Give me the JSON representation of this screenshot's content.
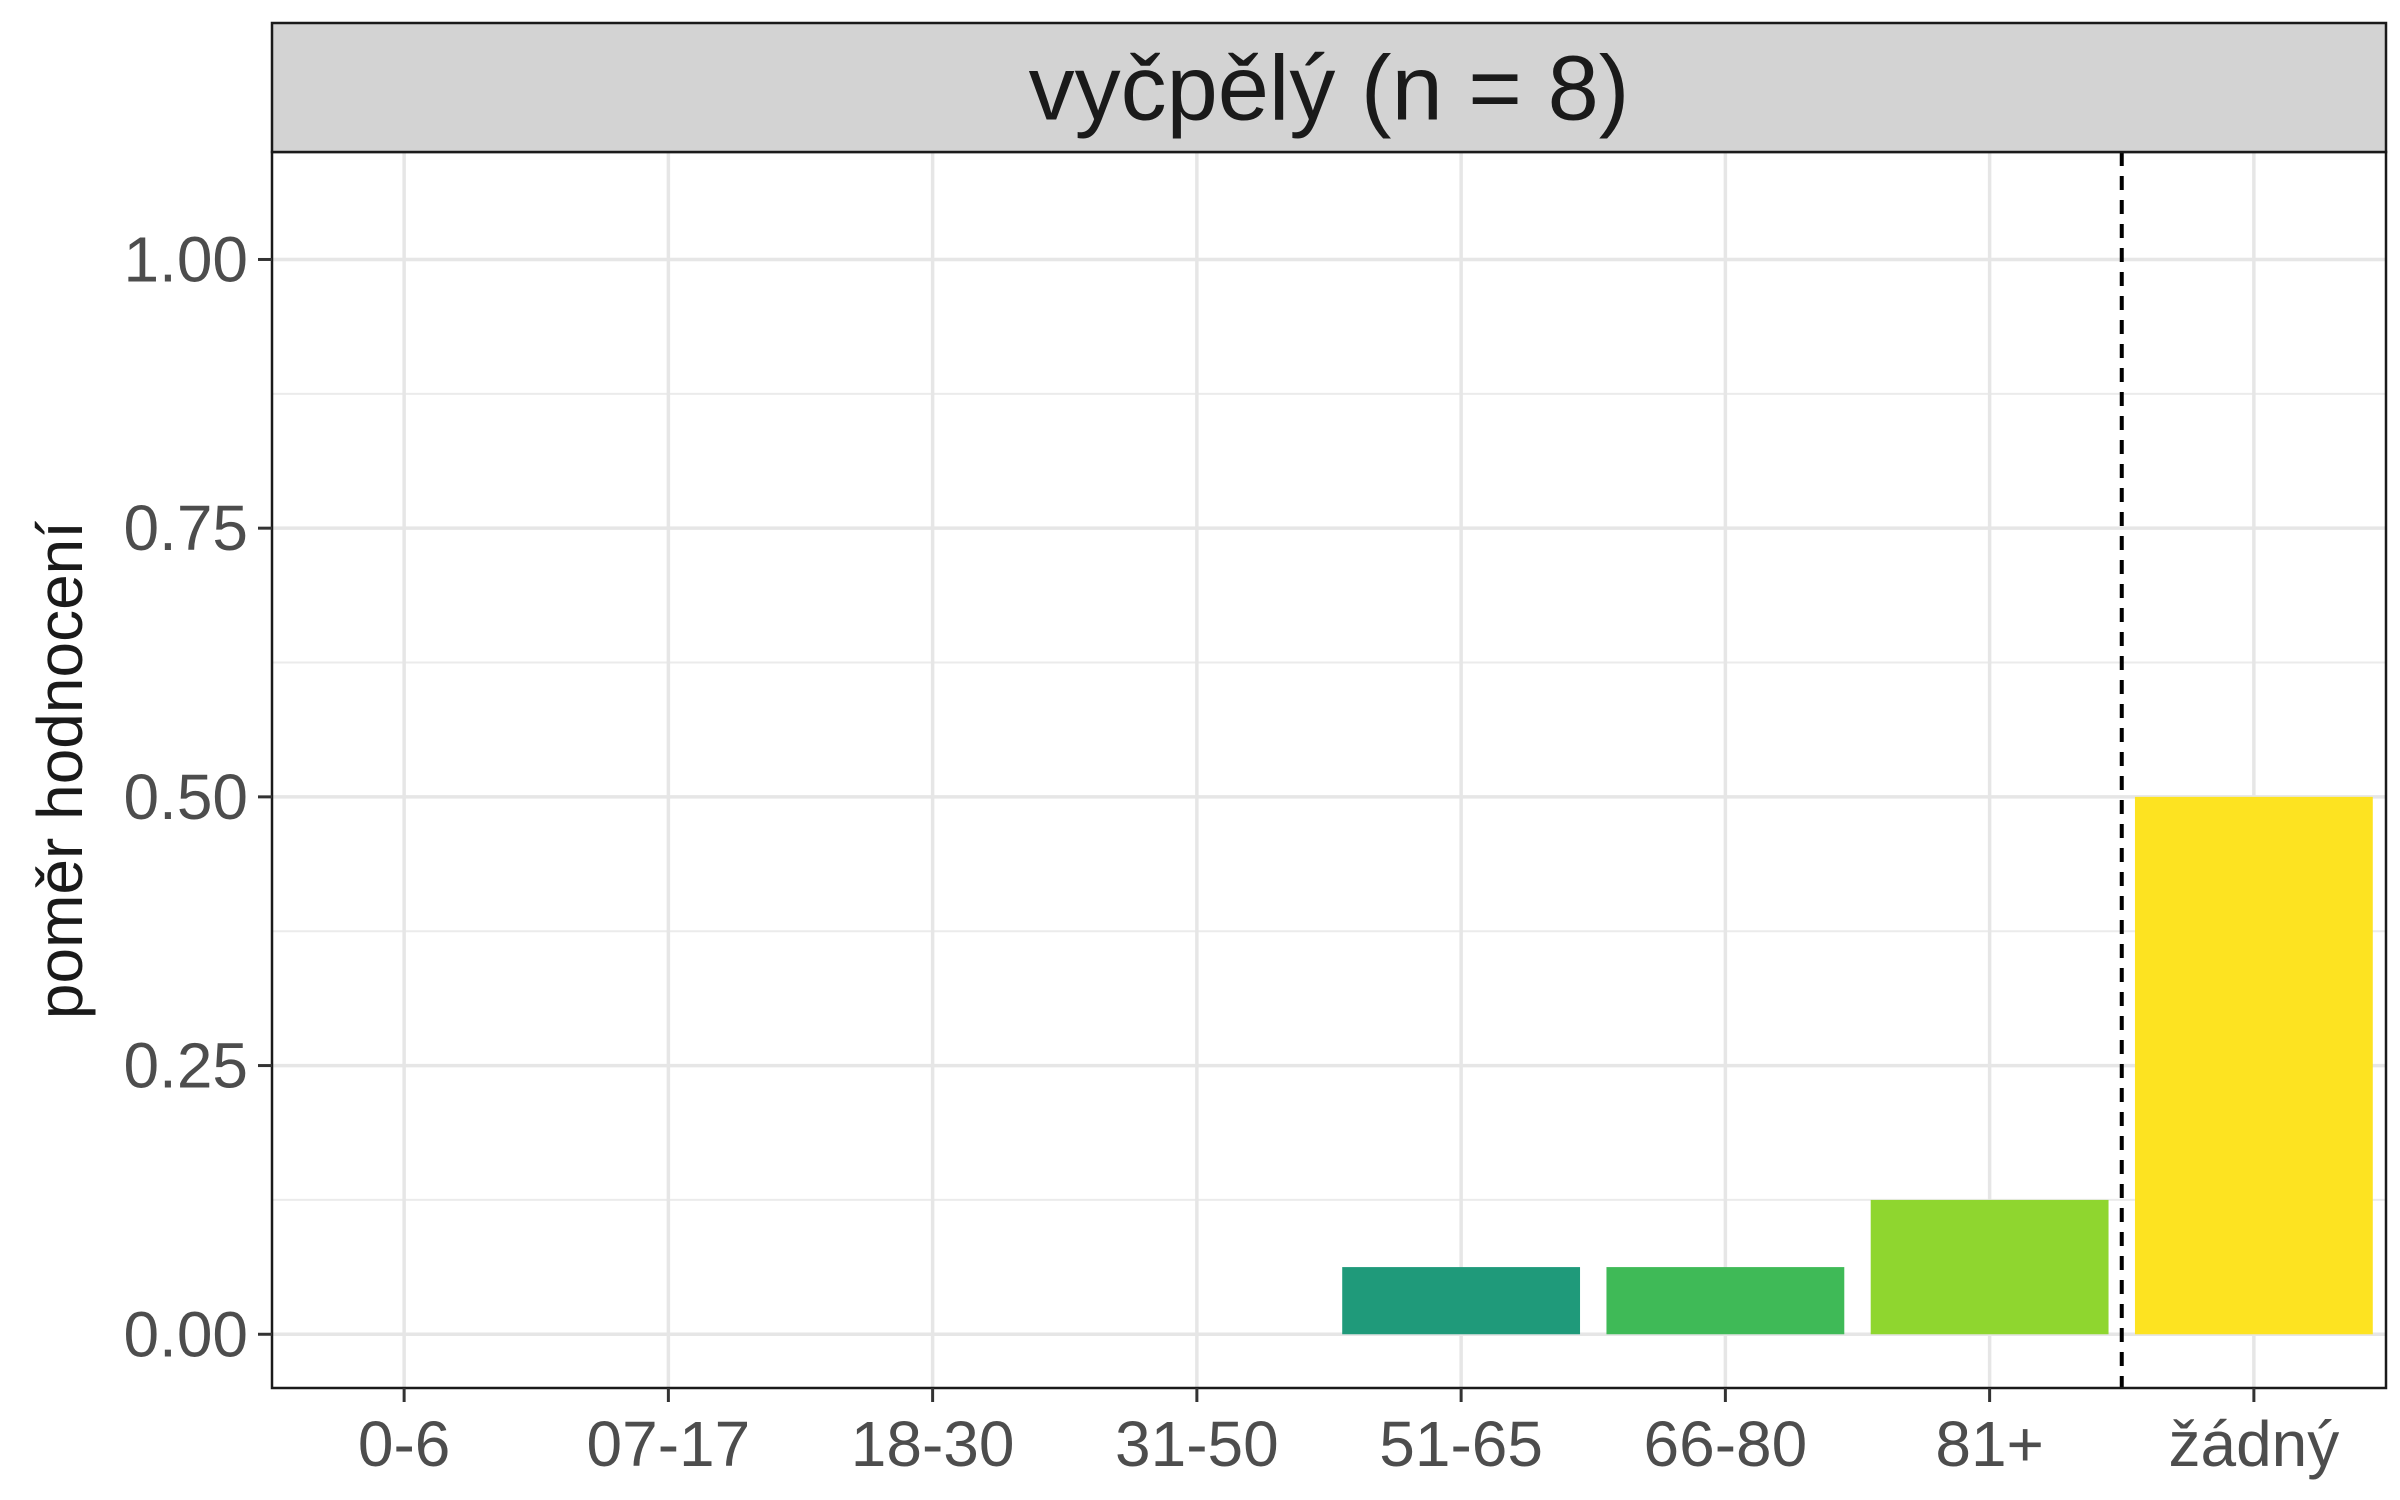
{
  "chart_data": {
    "type": "bar",
    "title": "vyčpělý (n = 8)",
    "xlabel": "",
    "ylabel": "poměr hodnocení",
    "categories": [
      "0-6",
      "07-17",
      "18-30",
      "31-50",
      "51-65",
      "66-80",
      "81+",
      "žádný"
    ],
    "values": [
      0,
      0,
      0,
      0,
      0.0625,
      0.0625,
      0.125,
      0.5
    ],
    "colors": [
      "#440154",
      "#46337e",
      "#365c8d",
      "#277f8e",
      "#1f9a7a",
      "#3fba57",
      "#8fd62f",
      "#fde321"
    ],
    "ylim": [
      -0.05,
      1.1
    ],
    "y_ticks": [
      0.0,
      0.25,
      0.5,
      0.75,
      1.0
    ],
    "y_tick_labels": [
      "0.00",
      "0.25",
      "0.50",
      "0.75",
      "1.00"
    ],
    "separator": "dashed vertical line between 81+ and žádný",
    "grid": true,
    "legend": "none"
  }
}
